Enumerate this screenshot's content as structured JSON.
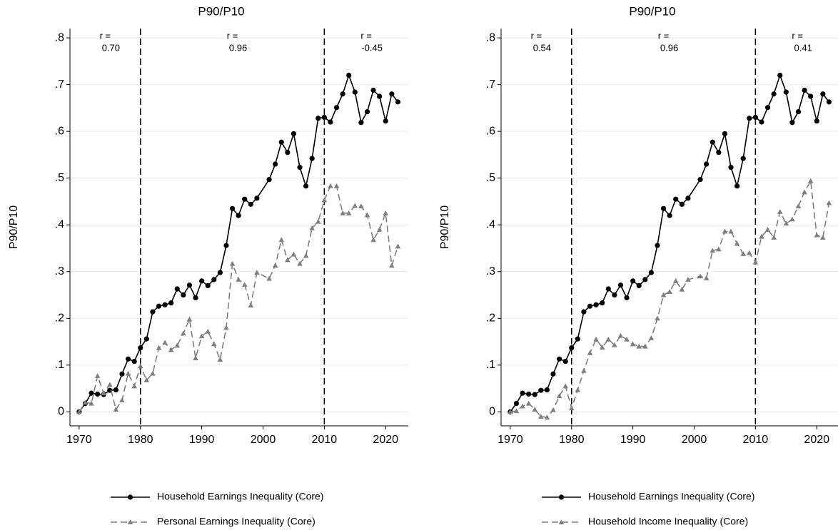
{
  "chart_data": [
    {
      "type": "line",
      "title": "P90/P10",
      "ylabel": "P90/P10",
      "x": [
        1970,
        1971,
        1972,
        1973,
        1974,
        1975,
        1976,
        1977,
        1978,
        1979,
        1980,
        1981,
        1982,
        1983,
        1984,
        1985,
        1986,
        1987,
        1988,
        1989,
        1990,
        1991,
        1992,
        1993,
        1994,
        1995,
        1996,
        1997,
        1998,
        1999,
        2001,
        2002,
        2003,
        2004,
        2005,
        2006,
        2007,
        2008,
        2009,
        2010,
        2011,
        2012,
        2013,
        2014,
        2015,
        2016,
        2017,
        2018,
        2019,
        2020,
        2021,
        2022
      ],
      "series": [
        {
          "name": "Household Earnings Inequality (Core)",
          "color": "#000000",
          "marker": "circle",
          "dashed": false,
          "values": [
            0,
            0.018,
            0.04,
            0.038,
            0.037,
            0.046,
            0.047,
            0.081,
            0.113,
            0.108,
            0.137,
            0.156,
            0.214,
            0.226,
            0.229,
            0.233,
            0.263,
            0.25,
            0.271,
            0.244,
            0.28,
            0.27,
            0.283,
            0.298,
            0.356,
            0.435,
            0.42,
            0.455,
            0.444,
            0.457,
            0.497,
            0.53,
            0.577,
            0.555,
            0.595,
            0.523,
            0.483,
            0.542,
            0.628,
            0.63,
            0.62,
            0.651,
            0.68,
            0.72,
            0.684,
            0.619,
            0.642,
            0.688,
            0.675,
            0.622,
            0.68,
            0.663
          ]
        },
        {
          "name": "Personal Earnings Inequality (Core)",
          "color": "#7f7f7f",
          "marker": "triangle",
          "dashed": true,
          "values": [
            0,
            0.02,
            0.018,
            0.077,
            0.04,
            0.058,
            0.005,
            0.025,
            0.082,
            0.055,
            0.098,
            0.068,
            0.082,
            0.137,
            0.148,
            0.133,
            0.142,
            0.168,
            0.198,
            0.115,
            0.162,
            0.172,
            0.145,
            0.112,
            0.18,
            0.317,
            0.283,
            0.272,
            0.228,
            0.298,
            0.285,
            0.313,
            0.368,
            0.325,
            0.337,
            0.317,
            0.334,
            0.393,
            0.407,
            0.453,
            0.483,
            0.483,
            0.425,
            0.425,
            0.441,
            0.44,
            0.421,
            0.368,
            0.39,
            0.425,
            0.313,
            0.354
          ]
        }
      ],
      "xlim": [
        1968.5,
        2023.7
      ],
      "xticks": [
        1970,
        1980,
        1990,
        2000,
        2010,
        2020
      ],
      "ylim": [
        -0.03,
        0.82
      ],
      "yticks": [
        0,
        {
          "value": 0.1,
          "label": ".1"
        },
        {
          "value": 0.2,
          "label": ".2"
        },
        {
          "value": 0.3,
          "label": ".3"
        },
        {
          "value": 0.4,
          "label": ".4"
        },
        {
          "value": 0.5,
          "label": ".5"
        },
        {
          "value": 0.6,
          "label": ".6"
        },
        {
          "value": 0.7,
          "label": ".7"
        },
        {
          "value": 0.8,
          "label": ".8"
        }
      ],
      "grid": true,
      "vlines": [
        1980,
        2010
      ],
      "annotations": [
        [
          "r =",
          "0.70"
        ],
        [
          "r =",
          "0.96"
        ],
        [
          "r =",
          "-0.45"
        ]
      ],
      "legend": "bottom"
    },
    {
      "type": "line",
      "title": "P90/P10",
      "ylabel": "P90/P10",
      "x": [
        1970,
        1971,
        1972,
        1973,
        1974,
        1975,
        1976,
        1977,
        1978,
        1979,
        1980,
        1981,
        1982,
        1983,
        1984,
        1985,
        1986,
        1987,
        1988,
        1989,
        1990,
        1991,
        1992,
        1993,
        1994,
        1995,
        1996,
        1997,
        1998,
        1999,
        2001,
        2002,
        2003,
        2004,
        2005,
        2006,
        2007,
        2008,
        2009,
        2010,
        2011,
        2012,
        2013,
        2014,
        2015,
        2016,
        2017,
        2018,
        2019,
        2020,
        2021,
        2022
      ],
      "series": [
        {
          "name": "Household Earnings Inequality (Core)",
          "color": "#000000",
          "marker": "circle",
          "dashed": false,
          "values": [
            0,
            0.018,
            0.04,
            0.038,
            0.037,
            0.046,
            0.047,
            0.081,
            0.113,
            0.108,
            0.137,
            0.156,
            0.214,
            0.226,
            0.229,
            0.233,
            0.263,
            0.25,
            0.271,
            0.244,
            0.28,
            0.27,
            0.283,
            0.298,
            0.356,
            0.435,
            0.42,
            0.455,
            0.444,
            0.457,
            0.497,
            0.53,
            0.577,
            0.555,
            0.595,
            0.523,
            0.483,
            0.542,
            0.628,
            0.63,
            0.62,
            0.651,
            0.68,
            0.72,
            0.684,
            0.619,
            0.642,
            0.688,
            0.675,
            0.622,
            0.68,
            0.663
          ]
        },
        {
          "name": "Household Income Inequality (Core)",
          "color": "#7f7f7f",
          "marker": "triangle",
          "dashed": true,
          "values": [
            0,
            0.002,
            0.012,
            0.018,
            0.005,
            -0.01,
            -0.012,
            0.004,
            0.034,
            0.055,
            0.008,
            0.047,
            0.088,
            0.126,
            0.155,
            0.138,
            0.155,
            0.143,
            0.163,
            0.155,
            0.145,
            0.14,
            0.14,
            0.158,
            0.2,
            0.25,
            0.257,
            0.28,
            0.262,
            0.283,
            0.29,
            0.286,
            0.345,
            0.348,
            0.386,
            0.386,
            0.36,
            0.338,
            0.34,
            0.32,
            0.375,
            0.39,
            0.373,
            0.428,
            0.403,
            0.412,
            0.44,
            0.47,
            0.494,
            0.378,
            0.373,
            0.447
          ]
        }
      ],
      "xlim": [
        1968.5,
        2023.7
      ],
      "xticks": [
        1970,
        1980,
        1990,
        2000,
        2010,
        2020
      ],
      "ylim": [
        -0.03,
        0.82
      ],
      "yticks": [
        0,
        {
          "value": 0.1,
          "label": ".1"
        },
        {
          "value": 0.2,
          "label": ".2"
        },
        {
          "value": 0.3,
          "label": ".3"
        },
        {
          "value": 0.4,
          "label": ".4"
        },
        {
          "value": 0.5,
          "label": ".5"
        },
        {
          "value": 0.6,
          "label": ".6"
        },
        {
          "value": 0.7,
          "label": ".7"
        },
        {
          "value": 0.8,
          "label": ".8"
        }
      ],
      "grid": true,
      "vlines": [
        1980,
        2010
      ],
      "annotations": [
        [
          "r =",
          "0.54"
        ],
        [
          "r =",
          "0.96"
        ],
        [
          "r =",
          "0.41"
        ]
      ],
      "legend": "bottom"
    }
  ]
}
